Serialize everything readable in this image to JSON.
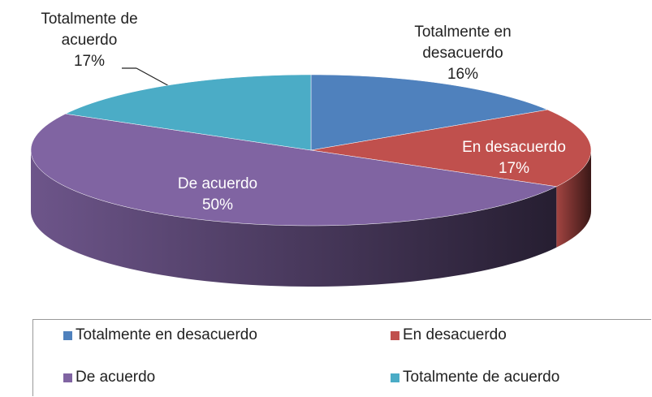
{
  "chart_data": {
    "type": "pie",
    "categories": [
      "Totalmente en desacuerdo",
      "En desacuerdo",
      "De acuerdo",
      "Totalmente de acuerdo"
    ],
    "values": [
      16,
      17,
      50,
      17
    ],
    "value_labels": [
      "16%",
      "17%",
      "50%",
      "17%"
    ],
    "colors": [
      "#4f81bd",
      "#c0504d",
      "#8064a2",
      "#4bacc6"
    ],
    "legend": "bottom"
  }
}
